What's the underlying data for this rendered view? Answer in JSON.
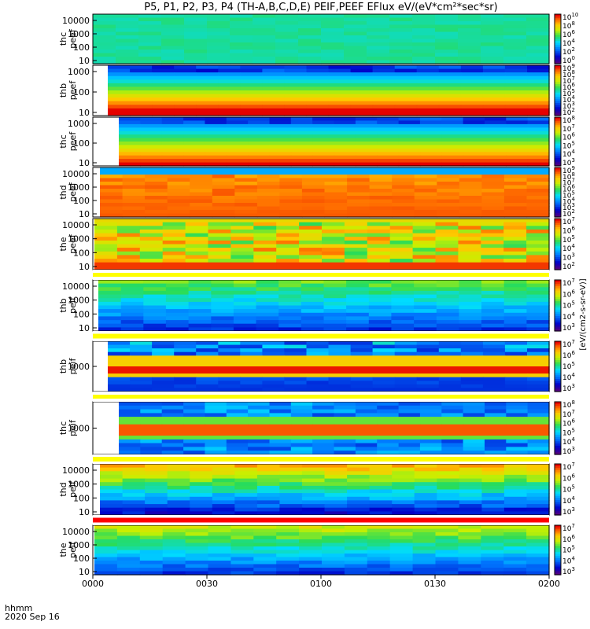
{
  "title": "P5, P1, P2, P3, P4 (TH-A,B,C,D,E) PEIF,PEEF EFlux eV/(eV*cm²*sec*sr)",
  "xaxis": {
    "ticks": [
      "0000",
      "0030",
      "0100",
      "0130",
      "0200"
    ],
    "left_labels": [
      "hhmm",
      "2020 Sep 16"
    ]
  },
  "colorbar_unit_label": "[eV/(cm2-s-sr-eV)]",
  "colors": {
    "background": "#ffffff",
    "frame": "#000000",
    "highlight_bar": "#ffff00",
    "red_bar": "#ff0000"
  },
  "chart_data": [
    {
      "type": "heatmap",
      "probe_label": [
        "thc",
        "peef"
      ],
      "yticks": [
        "10000",
        "1000",
        "100",
        "10"
      ],
      "colorbar_ticks": [
        "10^10",
        "10^8",
        "10^6",
        "10^4",
        "10^2",
        "10^0"
      ],
      "description_of_values": "mostly green/yellow flux, uniform across energies"
    },
    {
      "type": "heatmap",
      "probe_label": [
        "thb",
        "peef"
      ],
      "yticks": [
        "1000",
        "100",
        "10"
      ],
      "colorbar_ticks": [
        "10^9",
        "10^8",
        "10^7",
        "10^6",
        "10^5",
        "10^4",
        "10^3",
        "10^2"
      ]
    },
    {
      "type": "heatmap",
      "probe_label": [
        "thc",
        "peef"
      ],
      "yticks": [
        "1000",
        "100",
        "10"
      ],
      "colorbar_ticks": [
        "10^8",
        "10^7",
        "10^6",
        "10^5",
        "10^4",
        "10^3"
      ]
    },
    {
      "type": "heatmap",
      "probe_label": [
        "thd",
        "peef"
      ],
      "yticks": [
        "10000",
        "1000",
        "100",
        "10"
      ],
      "colorbar_ticks": [
        "10^9",
        "10^8",
        "10^7",
        "10^6",
        "10^5",
        "10^4",
        "10^3",
        "10^2"
      ]
    },
    {
      "type": "heatmap",
      "probe_label": [
        "the",
        "peef"
      ],
      "yticks": [
        "10000",
        "1000",
        "100",
        "10"
      ],
      "colorbar_ticks": [
        "10^7",
        "10^6",
        "10^5",
        "10^4",
        "10^3",
        "10^2"
      ]
    },
    {
      "type": "heatmap",
      "probe_label": [
        "thb",
        "peif"
      ],
      "yticks": [
        "10000",
        "1000",
        "100",
        "10"
      ],
      "colorbar_ticks": [
        "10^7",
        "10^6",
        "10^5",
        "10^4",
        "10^3"
      ]
    },
    {
      "type": "heatmap",
      "probe_label": [
        "thb",
        "peif"
      ],
      "yticks": [
        "1000"
      ],
      "colorbar_ticks": [
        "10^7",
        "10^6",
        "10^5",
        "10^4",
        "10^3"
      ]
    },
    {
      "type": "heatmap",
      "probe_label": [
        "thc",
        "peif"
      ],
      "yticks": [
        "1000"
      ],
      "colorbar_ticks": [
        "10^8",
        "10^7",
        "10^6",
        "10^5",
        "10^4",
        "10^3"
      ]
    },
    {
      "type": "heatmap",
      "probe_label": [
        "thd",
        "peif"
      ],
      "yticks": [
        "10000",
        "1000",
        "100",
        "10"
      ],
      "colorbar_ticks": [
        "10^7",
        "10^6",
        "10^5",
        "10^4",
        "10^3"
      ]
    },
    {
      "type": "heatmap",
      "probe_label": [
        "the",
        "peif"
      ],
      "yticks": [
        "10000",
        "1000",
        "100",
        "10"
      ],
      "colorbar_ticks": [
        "10^7",
        "10^6",
        "10^5",
        "10^4",
        "10^3"
      ]
    }
  ]
}
